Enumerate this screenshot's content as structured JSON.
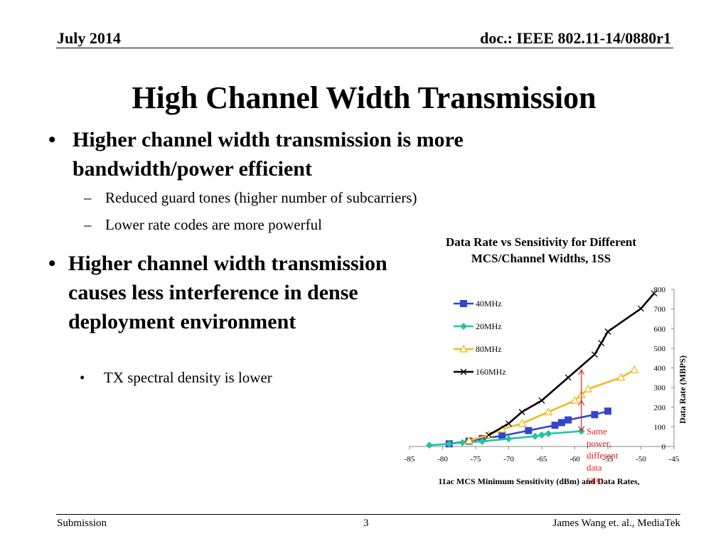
{
  "header": {
    "date": "July 2014",
    "doc_id": "doc.: IEEE 802.11-14/0880r1"
  },
  "slide": {
    "title": "High Channel Width Transmission",
    "bullet1": {
      "marker": "•",
      "text": "Higher channel width transmission is more bandwidth/power efficient",
      "subs": [
        {
          "marker": "–",
          "text": "Reduced guard tones (higher number of subcarriers)"
        },
        {
          "marker": "–",
          "text": "Lower rate codes are more powerful"
        }
      ]
    },
    "bullet2": {
      "marker": "•",
      "text": "Higher channel width transmission causes less interference in dense deployment environment",
      "subs": [
        {
          "marker": "•",
          "text": "TX spectral density is lower"
        }
      ]
    }
  },
  "chart_data": {
    "type": "line",
    "title": "Data Rate vs Sensitivity for Different MCS/Channel Widths, 1SS",
    "xlabel": "11ac MCS Minimum Sensitivity (dBm) and Data Rates,",
    "ylabel": "Data Rate (MBPS)",
    "xlim": [
      -85,
      -45
    ],
    "ylim": [
      0,
      800
    ],
    "xticks": [
      -85,
      -80,
      -75,
      -70,
      -65,
      -60,
      -55,
      -50,
      -45
    ],
    "yticks": [
      0,
      100,
      200,
      300,
      400,
      500,
      600,
      700,
      800
    ],
    "legend_position": "left-inside",
    "grid": false,
    "series": [
      {
        "name": "40MHz",
        "color": "#3344cc",
        "marker": "square",
        "points": [
          [
            -79,
            13.5
          ],
          [
            -76,
            27
          ],
          [
            -74,
            40.5
          ],
          [
            -71,
            54
          ],
          [
            -67,
            81
          ],
          [
            -63,
            108
          ],
          [
            -62,
            121.5
          ],
          [
            -61,
            135
          ],
          [
            -57,
            162
          ],
          [
            -55,
            180
          ]
        ]
      },
      {
        "name": "20MHz",
        "color": "#22c4a0",
        "marker": "diamond",
        "points": [
          [
            -82,
            6.5
          ],
          [
            -79,
            13
          ],
          [
            -77,
            19.5
          ],
          [
            -74,
            26
          ],
          [
            -70,
            39
          ],
          [
            -66,
            52
          ],
          [
            -65,
            58.5
          ],
          [
            -64,
            65
          ],
          [
            -59,
            78
          ]
        ]
      },
      {
        "name": "80MHz",
        "color": "#f5b820",
        "marker": "triangle",
        "points": [
          [
            -76,
            29.3
          ],
          [
            -73,
            58.5
          ],
          [
            -71,
            87.8
          ],
          [
            -68,
            117
          ],
          [
            -64,
            175.5
          ],
          [
            -60,
            234
          ],
          [
            -59,
            263.3
          ],
          [
            -58,
            292.5
          ],
          [
            -53,
            351
          ],
          [
            -51,
            390
          ]
        ]
      },
      {
        "name": "160MHz",
        "color": "#000000",
        "marker": "x",
        "points": [
          [
            -73,
            58.5
          ],
          [
            -70,
            117
          ],
          [
            -68,
            175.5
          ],
          [
            -65,
            234
          ],
          [
            -61,
            351
          ],
          [
            -57,
            468
          ],
          [
            -56,
            526.5
          ],
          [
            -55,
            585
          ],
          [
            -50,
            702
          ],
          [
            -48,
            780
          ]
        ]
      }
    ],
    "annotation": {
      "text": "Same power, different data rates",
      "color": "#e02020",
      "x": -59,
      "y_from": 78,
      "y_to": 390
    }
  },
  "footer": {
    "left": "Submission",
    "page": "3",
    "right": "James Wang et. al., MediaTek"
  }
}
